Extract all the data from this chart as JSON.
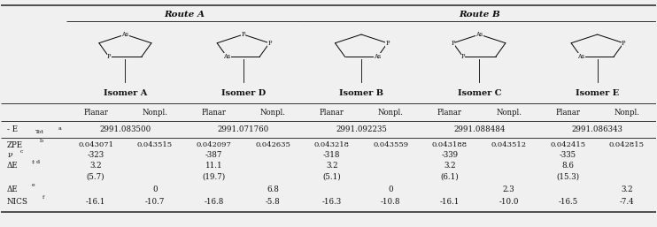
{
  "bg_color": "#f0f0f0",
  "route_a": "Route A",
  "route_b": "Route B",
  "isomers": [
    "Isomer A",
    "Isomer D",
    "Isomer B",
    "Isomer C",
    "Isomer E"
  ],
  "subheaders": [
    "Planar",
    "Nonpl.",
    "Planar",
    "Nonpl.",
    "Planar",
    "Nonpl.",
    "Planar",
    "Nonpl.",
    "Planar",
    "Nonpl."
  ],
  "etot_vals": [
    "2991.083500",
    "2991.071760",
    "2991.092235",
    "2991.088484",
    "2991.086343"
  ],
  "zpe_vals": [
    "0.043071",
    "0.043515",
    "0.042097",
    "0.042635",
    "0.043218",
    "0.043559",
    "0.043188",
    "0.043512",
    "0.042415",
    "0.042815"
  ],
  "nu_vals": [
    "-323",
    "",
    "-387",
    "",
    "-318",
    "",
    "-339",
    "",
    "-335",
    ""
  ],
  "de_vals": [
    "3.2",
    "",
    "11.1",
    "",
    "3.2",
    "",
    "3.2",
    "",
    "8.6",
    ""
  ],
  "dep_vals": [
    "(5.7)",
    "",
    "(19.7)",
    "",
    "(5.1)",
    "",
    "(6.1)",
    "",
    "(15.3)",
    ""
  ],
  "de2_vals": [
    "",
    "0",
    "",
    "6.8",
    "",
    "0",
    "",
    "2.3",
    "",
    "3.2"
  ],
  "nics_vals": [
    "-16.1",
    "-10.7",
    "-16.8",
    "-5.8",
    "-16.3",
    "-10.8",
    "-16.1",
    "-10.0",
    "-16.5",
    "-7.4"
  ],
  "mol_atoms": [
    [
      "As",
      "",
      "",
      "P",
      ""
    ],
    [
      "P",
      "P",
      "",
      "As",
      ""
    ],
    [
      "",
      "P",
      "As",
      "",
      ""
    ],
    [
      "As",
      "",
      "",
      "P",
      "P"
    ],
    [
      "",
      "P",
      "",
      "As",
      ""
    ]
  ]
}
